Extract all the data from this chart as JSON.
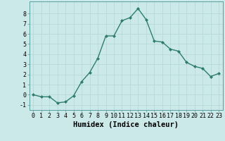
{
  "x": [
    0,
    1,
    2,
    3,
    4,
    5,
    6,
    7,
    8,
    9,
    10,
    11,
    12,
    13,
    14,
    15,
    16,
    17,
    18,
    19,
    20,
    21,
    22,
    23
  ],
  "y": [
    0.0,
    -0.2,
    -0.2,
    -0.8,
    -0.7,
    -0.1,
    1.3,
    2.2,
    3.6,
    5.8,
    5.8,
    7.3,
    7.6,
    8.5,
    7.4,
    5.3,
    5.2,
    4.5,
    4.3,
    3.2,
    2.8,
    2.6,
    1.8,
    2.1
  ],
  "line_color": "#2e7d6e",
  "marker": "D",
  "marker_size": 2.0,
  "bg_color": "#cce9ea",
  "grid_color": "#b8d8d9",
  "xlabel": "Humidex (Indice chaleur)",
  "xlim": [
    -0.5,
    23.5
  ],
  "ylim": [
    -1.5,
    9.2
  ],
  "yticks": [
    -1,
    0,
    1,
    2,
    3,
    4,
    5,
    6,
    7,
    8
  ],
  "xticks": [
    0,
    1,
    2,
    3,
    4,
    5,
    6,
    7,
    8,
    9,
    10,
    11,
    12,
    13,
    14,
    15,
    16,
    17,
    18,
    19,
    20,
    21,
    22,
    23
  ],
  "tick_fontsize": 6.0,
  "label_fontsize": 7.5,
  "line_width": 1.0
}
